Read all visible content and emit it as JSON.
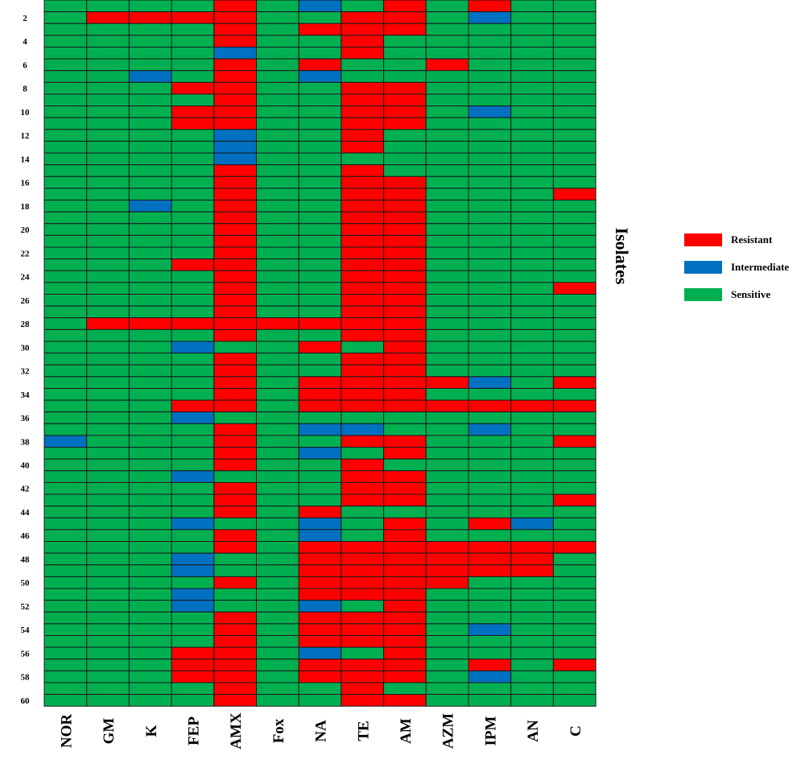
{
  "chart_data": {
    "type": "heatmap",
    "ylabel": "Isolates",
    "columns": [
      "NOR",
      "GM",
      "K",
      "FEP",
      "AMX",
      "Fox",
      "NA",
      "TE",
      "AM",
      "AZM",
      "IPM",
      "AN",
      "C"
    ],
    "row_tick_labels": [
      "2",
      "4",
      "6",
      "8",
      "10",
      "12",
      "14",
      "16",
      "18",
      "20",
      "22",
      "24",
      "26",
      "28",
      "30",
      "32",
      "34",
      "36",
      "38",
      "40",
      "42",
      "44",
      "46",
      "48",
      "50",
      "52",
      "54",
      "56",
      "58",
      "60"
    ],
    "row_count": 60,
    "categories": {
      "R": {
        "label": "Resistant",
        "color": "#ff0000"
      },
      "I": {
        "label": "Intermediate",
        "color": "#0070c0"
      },
      "S": {
        "label": "Sensitive",
        "color": "#00b050"
      },
      "L": {
        "label": "",
        "color": "#8eaadb"
      }
    },
    "legend": [
      {
        "key": "R",
        "label": "Resistant"
      },
      {
        "key": "I",
        "label": "Intermediate"
      },
      {
        "key": "S",
        "label": "Sensitive"
      }
    ],
    "legend_position": "right",
    "rows": [
      "SSSSRSISRSRSS",
      "SRRRRSSRRSISS",
      "SSSSRSRRRSSSS",
      "SSSSRSSRSSSSS",
      "SSSSISSRSSSSS",
      "SSSSRSRSSRSSS",
      "SSISRSISSSSSS",
      "SSSRRSSRRSSSS",
      "SSSSRSSRRSSSS",
      "SSSRRSSRRSISS",
      "SSSRRSSRRSSSS",
      "SSSSISSRSSSSS",
      "SSSSISSRSSSSS",
      "SSSSISSSSSSSS",
      "SSSSRSSRSSSSS",
      "SSSSRSSRRSSSS",
      "SSSSRSSRRSSSR",
      "SSISRSSRRSSSS",
      "SSSSRSSRRSSSS",
      "SSSSRSSRRSSSS",
      "SSSSRSSRRSSSS",
      "SSSSRSSRRSSSS",
      "SSSRRSSRRSSSS",
      "SSSSRSSRRSSSS",
      "SSSSRSSRRSSSR",
      "SSSSRSSRRSSSS",
      "SSSSRSSRRSSSS",
      "SRRRRRRRRSSSS",
      "SSSSRSSRRSSSS",
      "SSSISSRSRSSSS",
      "SSSSRSSRRSSSS",
      "SSSSRSSRRSSSS",
      "SSSSRSRRRRISR",
      "SSSSRSRRRSSSS",
      "SSSRRSRRRRRRR",
      "SSSISSSSSSSSS",
      "SSSSRSIISSISS",
      "ISSSRSSRRSSSR",
      "SSSSRSISRSSSS",
      "SSSSRSSRSSSSS",
      "SSSISSSRRSSSS",
      "SSSSRSSRRSSSS",
      "SSSSRSSRRSSSR",
      "SSSSRSRSSSSSS",
      "SSSISSISRSRIS",
      "SSSSRSISRSSSS",
      "SSSSRSRRRRRRR",
      "SSSISSRRRRRRS",
      "SSSISSRRRRRRS",
      "SSSSRSRRRRSSS",
      "SSSISSRRRSSSS",
      "SSSISSISRSSSS",
      "SSSSRSRRRSSSS",
      "SSSSRSRRRSISS",
      "SSSSRSRRRSSSS",
      "SSSRRSISRSSSS",
      "SSSRRSRRRSRSR",
      "SSSRRSRRRSISS",
      "SSSSRSSRSSSSS",
      "SSSSRSSRRSSSS"
    ]
  }
}
